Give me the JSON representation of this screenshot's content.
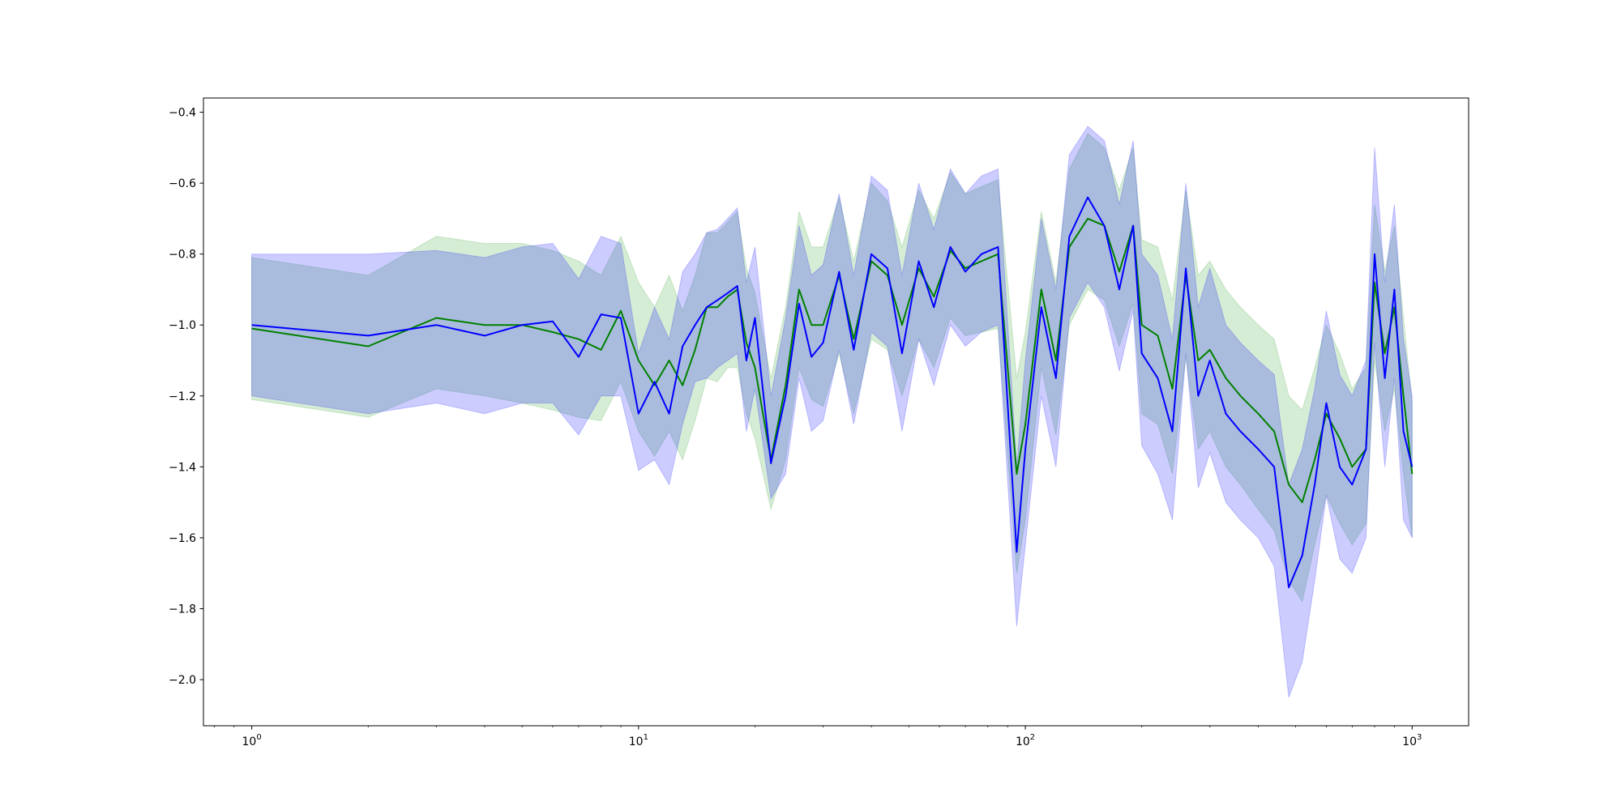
{
  "chart_data": {
    "type": "line",
    "title": "",
    "xlabel": "",
    "ylabel": "",
    "xscale": "log",
    "xlim": [
      0.75,
      1400
    ],
    "ylim": [
      -2.13,
      -0.36
    ],
    "grid": false,
    "legend": "none",
    "x_ticks": [
      {
        "base": "10",
        "exp": "0",
        "value": 1
      },
      {
        "base": "10",
        "exp": "1",
        "value": 10
      },
      {
        "base": "10",
        "exp": "2",
        "value": 100
      },
      {
        "base": "10",
        "exp": "3",
        "value": 1000
      }
    ],
    "y_ticks": [
      {
        "label": "−0.4",
        "value": -0.4
      },
      {
        "label": "−0.6",
        "value": -0.6
      },
      {
        "label": "−0.8",
        "value": -0.8
      },
      {
        "label": "−1.0",
        "value": -1.0
      },
      {
        "label": "−1.2",
        "value": -1.2
      },
      {
        "label": "−1.4",
        "value": -1.4
      },
      {
        "label": "−1.6",
        "value": -1.6
      },
      {
        "label": "−1.8",
        "value": -1.8
      },
      {
        "label": "−2.0",
        "value": -2.0
      }
    ],
    "series": [
      {
        "color": "#008000",
        "band_color": "#2ca02c",
        "x": [
          1,
          2,
          3,
          4,
          5,
          6,
          7,
          8,
          9,
          10,
          11,
          12,
          13,
          14,
          15,
          16,
          17,
          18,
          19,
          20,
          22,
          24,
          26,
          28,
          30,
          33,
          36,
          40,
          44,
          48,
          53,
          58,
          64,
          70,
          77,
          85,
          95,
          100,
          110,
          120,
          130,
          145,
          160,
          175,
          190,
          200,
          220,
          240,
          260,
          280,
          300,
          330,
          360,
          400,
          440,
          480,
          520,
          560,
          600,
          650,
          700,
          760,
          800,
          850,
          900,
          950,
          1000
        ],
        "y": [
          -1.01,
          -1.06,
          -0.98,
          -1.0,
          -1.0,
          -1.02,
          -1.04,
          -1.07,
          -0.96,
          -1.1,
          -1.17,
          -1.1,
          -1.17,
          -1.07,
          -0.95,
          -0.95,
          -0.92,
          -0.9,
          -1.05,
          -1.12,
          -1.38,
          -1.17,
          -0.9,
          -1.0,
          -1.0,
          -0.86,
          -1.04,
          -0.82,
          -0.86,
          -1.0,
          -0.84,
          -0.92,
          -0.79,
          -0.84,
          -0.82,
          -0.8,
          -1.42,
          -1.28,
          -0.9,
          -1.1,
          -0.78,
          -0.7,
          -0.72,
          -0.85,
          -0.72,
          -1.0,
          -1.03,
          -1.18,
          -0.86,
          -1.1,
          -1.07,
          -1.15,
          -1.2,
          -1.25,
          -1.3,
          -1.45,
          -1.5,
          -1.38,
          -1.25,
          -1.32,
          -1.4,
          -1.35,
          -0.88,
          -1.08,
          -0.95,
          -1.2,
          -1.42
        ],
        "lower": [
          -1.21,
          -1.26,
          -1.18,
          -1.2,
          -1.22,
          -1.24,
          -1.26,
          -1.27,
          -1.16,
          -1.3,
          -1.37,
          -1.3,
          -1.38,
          -1.27,
          -1.15,
          -1.16,
          -1.12,
          -1.12,
          -1.25,
          -1.32,
          -1.52,
          -1.38,
          -1.12,
          -1.21,
          -1.23,
          -1.08,
          -1.25,
          -1.04,
          -1.07,
          -1.2,
          -1.04,
          -1.12,
          -0.98,
          -1.03,
          -1.02,
          -1.01,
          -1.7,
          -1.55,
          -1.12,
          -1.31,
          -1.0,
          -0.9,
          -0.93,
          -1.06,
          -0.94,
          -1.25,
          -1.28,
          -1.42,
          -1.09,
          -1.35,
          -1.3,
          -1.4,
          -1.45,
          -1.52,
          -1.58,
          -1.72,
          -1.78,
          -1.62,
          -1.48,
          -1.56,
          -1.62,
          -1.56,
          -1.1,
          -1.3,
          -1.18,
          -1.42,
          -1.6
        ],
        "upper": [
          -0.81,
          -0.86,
          -0.75,
          -0.77,
          -0.77,
          -0.79,
          -0.82,
          -0.86,
          -0.75,
          -0.88,
          -0.95,
          -0.86,
          -0.96,
          -0.86,
          -0.74,
          -0.74,
          -0.71,
          -0.68,
          -0.84,
          -0.91,
          -1.15,
          -0.95,
          -0.68,
          -0.78,
          -0.78,
          -0.64,
          -0.82,
          -0.6,
          -0.65,
          -0.78,
          -0.62,
          -0.7,
          -0.57,
          -0.63,
          -0.61,
          -0.59,
          -1.15,
          -1.02,
          -0.68,
          -0.88,
          -0.56,
          -0.46,
          -0.5,
          -0.62,
          -0.5,
          -0.76,
          -0.78,
          -0.93,
          -0.62,
          -0.86,
          -0.82,
          -0.9,
          -0.95,
          -1.0,
          -1.04,
          -1.2,
          -1.24,
          -1.12,
          -1.0,
          -1.08,
          -1.18,
          -1.12,
          -0.66,
          -0.85,
          -0.72,
          -0.98,
          -1.22
        ]
      },
      {
        "color": "#0000ff",
        "band_color": "#0000ff",
        "x": [
          1,
          2,
          3,
          4,
          5,
          6,
          7,
          8,
          9,
          10,
          11,
          12,
          13,
          14,
          15,
          16,
          17,
          18,
          19,
          20,
          22,
          24,
          26,
          28,
          30,
          33,
          36,
          40,
          44,
          48,
          53,
          58,
          64,
          70,
          77,
          85,
          95,
          100,
          110,
          120,
          130,
          145,
          160,
          175,
          190,
          200,
          220,
          240,
          260,
          280,
          300,
          330,
          360,
          400,
          440,
          480,
          520,
          560,
          600,
          650,
          700,
          760,
          800,
          850,
          900,
          950,
          1000
        ],
        "y": [
          -1.0,
          -1.03,
          -1.0,
          -1.03,
          -1.0,
          -0.99,
          -1.09,
          -0.97,
          -0.98,
          -1.25,
          -1.16,
          -1.25,
          -1.06,
          -1.0,
          -0.95,
          -0.93,
          -0.91,
          -0.89,
          -1.1,
          -0.98,
          -1.39,
          -1.2,
          -0.94,
          -1.09,
          -1.05,
          -0.85,
          -1.07,
          -0.8,
          -0.84,
          -1.08,
          -0.82,
          -0.95,
          -0.78,
          -0.85,
          -0.8,
          -0.78,
          -1.64,
          -1.35,
          -0.95,
          -1.15,
          -0.75,
          -0.64,
          -0.72,
          -0.9,
          -0.72,
          -1.08,
          -1.15,
          -1.3,
          -0.84,
          -1.2,
          -1.1,
          -1.25,
          -1.3,
          -1.35,
          -1.4,
          -1.74,
          -1.65,
          -1.45,
          -1.22,
          -1.4,
          -1.45,
          -1.35,
          -0.8,
          -1.15,
          -0.9,
          -1.3,
          -1.4
        ],
        "lower": [
          -1.2,
          -1.25,
          -1.22,
          -1.25,
          -1.22,
          -1.22,
          -1.31,
          -1.2,
          -1.2,
          -1.41,
          -1.38,
          -1.45,
          -1.28,
          -1.16,
          -1.15,
          -1.12,
          -1.1,
          -1.08,
          -1.3,
          -1.18,
          -1.49,
          -1.42,
          -1.15,
          -1.3,
          -1.27,
          -1.07,
          -1.28,
          -1.02,
          -1.06,
          -1.3,
          -1.04,
          -1.17,
          -1.0,
          -1.06,
          -1.02,
          -1.0,
          -1.85,
          -1.62,
          -1.2,
          -1.4,
          -0.98,
          -0.88,
          -0.95,
          -1.13,
          -0.96,
          -1.34,
          -1.42,
          -1.55,
          -1.08,
          -1.46,
          -1.36,
          -1.5,
          -1.55,
          -1.6,
          -1.68,
          -2.05,
          -1.95,
          -1.72,
          -1.48,
          -1.66,
          -1.7,
          -1.6,
          -1.05,
          -1.4,
          -1.15,
          -1.55,
          -1.6
        ],
        "upper": [
          -0.8,
          -0.8,
          -0.79,
          -0.81,
          -0.78,
          -0.77,
          -0.87,
          -0.75,
          -0.77,
          -1.08,
          -0.95,
          -1.04,
          -0.85,
          -0.8,
          -0.74,
          -0.73,
          -0.7,
          -0.67,
          -0.88,
          -0.78,
          -1.2,
          -0.98,
          -0.72,
          -0.86,
          -0.83,
          -0.63,
          -0.86,
          -0.58,
          -0.62,
          -0.86,
          -0.6,
          -0.73,
          -0.56,
          -0.63,
          -0.58,
          -0.56,
          -1.4,
          -1.1,
          -0.7,
          -0.9,
          -0.52,
          -0.44,
          -0.48,
          -0.66,
          -0.48,
          -0.8,
          -0.86,
          -1.04,
          -0.6,
          -0.95,
          -0.84,
          -1.0,
          -1.05,
          -1.1,
          -1.14,
          -1.45,
          -1.35,
          -1.18,
          -0.96,
          -1.14,
          -1.2,
          -1.1,
          -0.5,
          -0.88,
          -0.66,
          -1.04,
          -1.2
        ]
      }
    ]
  }
}
